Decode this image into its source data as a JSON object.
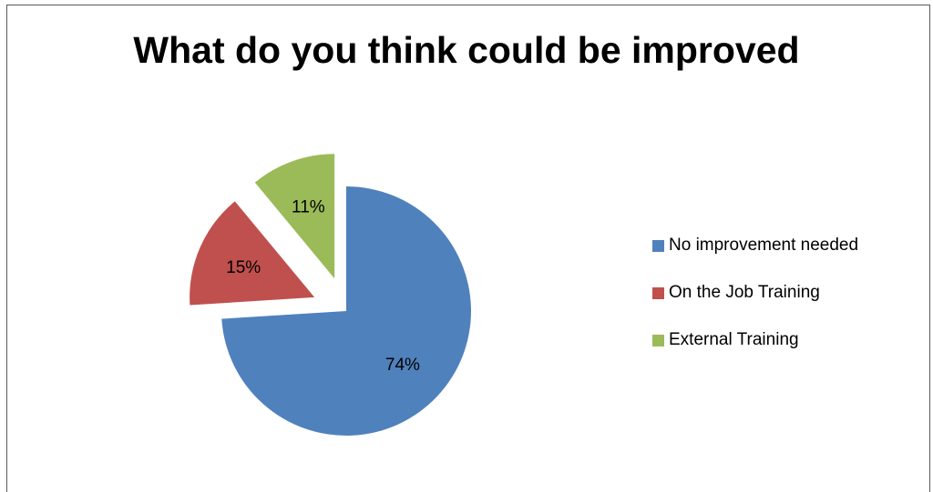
{
  "chart_data": {
    "type": "pie",
    "title": "What do you think could be improved",
    "categories": [
      "No improvement needed",
      "On the Job Training",
      "External Training"
    ],
    "values": [
      74,
      15,
      11
    ],
    "labels": [
      "74%",
      "15%",
      "11%"
    ],
    "colors": [
      "#4F81BD",
      "#C0504D",
      "#9BBB59"
    ],
    "exploded": [
      false,
      true,
      true
    ],
    "legend_position": "right"
  }
}
